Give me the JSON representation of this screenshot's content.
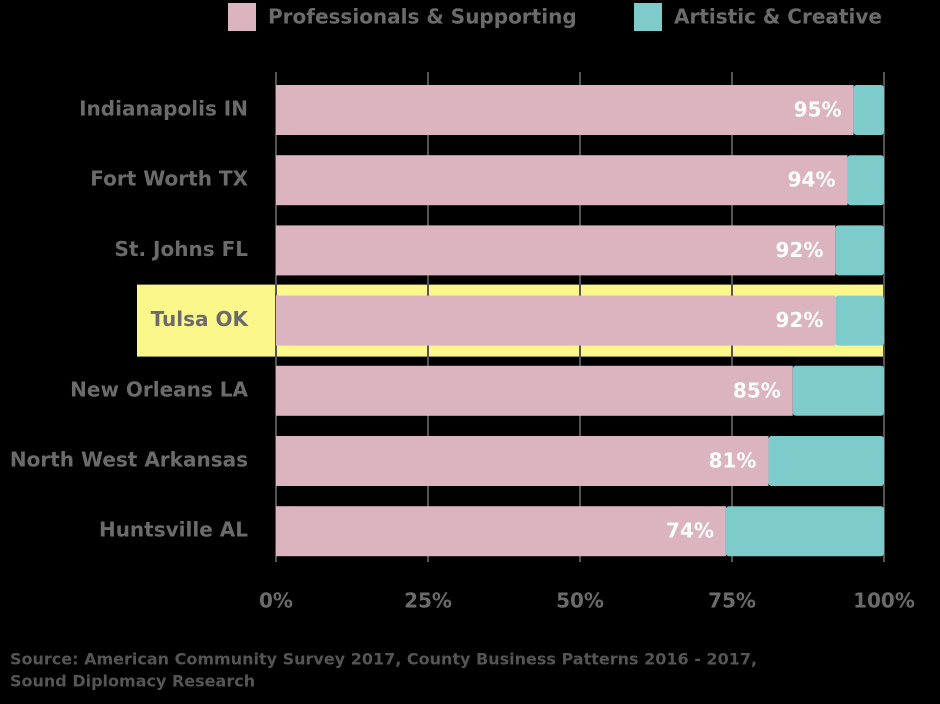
{
  "chart_data": {
    "type": "stacked-bar-horizontal",
    "categories": [
      "Indianapolis IN",
      "Fort Worth TX",
      "St. Johns FL",
      "Tulsa OK",
      "New Orleans LA",
      "North West Arkansas",
      "Huntsville AL"
    ],
    "series": [
      {
        "name": "Professionals & Supporting",
        "color": "#dbb4bf",
        "values": [
          95,
          94,
          92,
          92,
          85,
          81,
          74
        ],
        "value_labels": [
          "95%",
          "94%",
          "92%",
          "92%",
          "85%",
          "81%",
          "74%"
        ]
      },
      {
        "name": "Artistic & Creative",
        "color": "#7ecbcc",
        "values": [
          5,
          6,
          8,
          8,
          15,
          19,
          26
        ]
      }
    ],
    "xlim": [
      0,
      100
    ],
    "xticks": [
      {
        "value": 0,
        "label": "0%"
      },
      {
        "value": 25,
        "label": "25%"
      },
      {
        "value": 50,
        "label": "50%"
      },
      {
        "value": 75,
        "label": "75%"
      },
      {
        "value": 100,
        "label": "100%"
      }
    ],
    "grid": true,
    "highlight": "Tulsa OK",
    "highlight_color": "#fbf78a",
    "source": [
      "Source: American Community Survey 2017, County Business Patterns 2016 - 2017,",
      "Sound Diplomacy Research"
    ]
  }
}
